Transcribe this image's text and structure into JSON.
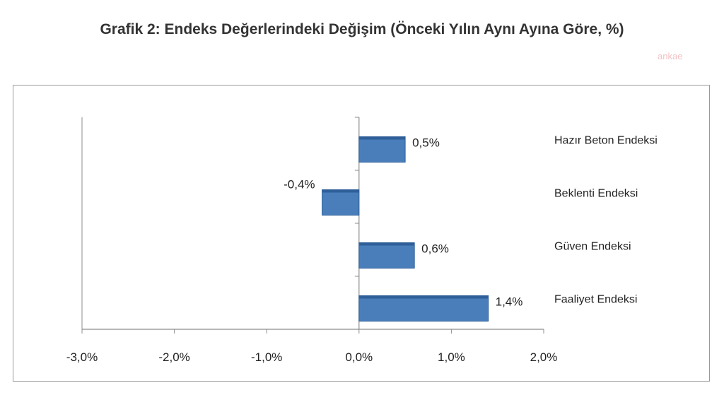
{
  "watermark": "ankae",
  "colors": {
    "bar": "#4a7ebb",
    "bar_edge": "#2f5f99",
    "axis": "#8c8c8c",
    "frame": "#9a9a9a"
  },
  "chart_data": {
    "type": "bar",
    "orientation": "horizontal",
    "title": "Grafik 2: Endeks Değerlerindeki Değişim (Önceki Yılın Aynı Ayına Göre, %)",
    "categories": [
      "Hazır Beton Endeksi",
      "Beklenti Endeksi",
      "Güven Endeksi",
      "Faaliyet Endeksi"
    ],
    "values": [
      0.5,
      -0.4,
      0.6,
      1.4
    ],
    "data_labels": [
      "0,5%",
      "-0,4%",
      "0,6%",
      "1,4%"
    ],
    "xlim": [
      -3.0,
      2.0
    ],
    "xticks": [
      -3.0,
      -2.0,
      -1.0,
      0.0,
      1.0,
      2.0
    ],
    "xtick_labels": [
      "-3,0%",
      "-2,0%",
      "-1,0%",
      "0,0%",
      "1,0%",
      "2,0%"
    ],
    "grid": false,
    "legend": "none"
  }
}
